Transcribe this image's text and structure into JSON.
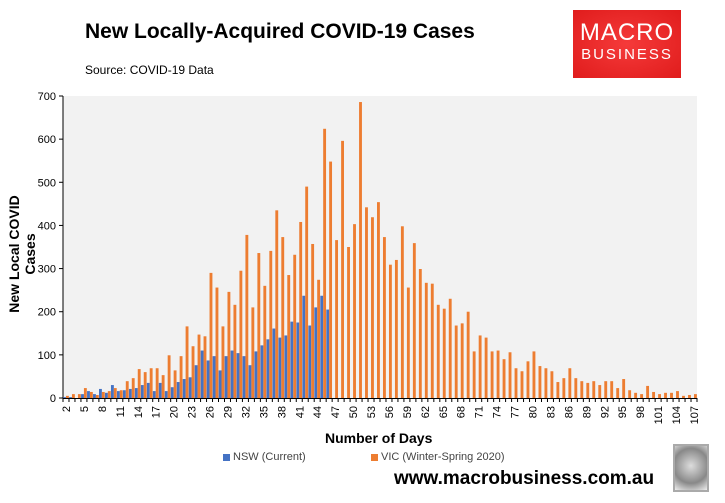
{
  "header": {
    "title": "New Locally-Acquired COVID-19 Cases",
    "source": "Source: COVID-19 Data"
  },
  "logo": {
    "line1": "MACRO",
    "line2": "BUSINESS",
    "color": "#e8211f"
  },
  "footer": {
    "url": "www.macrobusiness.com.au"
  },
  "chart_data": {
    "type": "bar",
    "title": "New Locally-Acquired COVID-19 Cases",
    "xlabel": "Number of Days",
    "ylabel": "New Local COVID Cases",
    "ylim": [
      0,
      700
    ],
    "yticks": [
      0,
      100,
      200,
      300,
      400,
      500,
      600,
      700
    ],
    "x_start": 2,
    "x_end": 107,
    "x_tick_step": 3,
    "grid": false,
    "legend": "bottom",
    "series": [
      {
        "name": "NSW (Current)",
        "color": "#4472c4",
        "values": [
          2,
          2,
          0,
          9,
          16,
          9,
          21,
          12,
          30,
          16,
          18,
          21,
          23,
          30,
          35,
          16,
          35,
          16,
          25,
          37,
          44,
          48,
          76,
          110,
          87,
          97,
          64,
          97,
          110,
          104,
          97,
          76,
          108,
          122,
          136,
          161,
          140,
          145,
          177,
          175,
          237,
          168,
          210,
          237,
          205
        ]
      },
      {
        "name": "VIC (Winter-Spring 2020)",
        "color": "#ed7d31",
        "values": [
          5,
          9,
          9,
          23,
          14,
          7,
          14,
          16,
          23,
          18,
          39,
          46,
          67,
          60,
          69,
          69,
          53,
          99,
          64,
          97,
          166,
          120,
          147,
          143,
          290,
          256,
          166,
          246,
          216,
          295,
          378,
          210,
          336,
          260,
          341,
          435,
          373,
          285,
          332,
          408,
          490,
          357,
          274,
          624,
          548,
          366,
          596,
          350,
          403,
          686,
          442,
          419,
          454,
          373,
          309,
          320,
          398,
          256,
          359,
          299,
          267,
          265,
          216,
          207,
          230,
          168,
          173,
          200,
          108,
          145,
          140,
          108,
          110,
          90,
          106,
          69,
          62,
          85,
          108,
          74,
          69,
          62,
          37,
          46,
          69,
          46,
          39,
          35,
          39,
          30,
          39,
          39,
          23,
          44,
          18,
          12,
          9,
          28,
          14,
          9,
          12,
          12,
          16,
          5,
          7,
          9
        ]
      }
    ]
  }
}
